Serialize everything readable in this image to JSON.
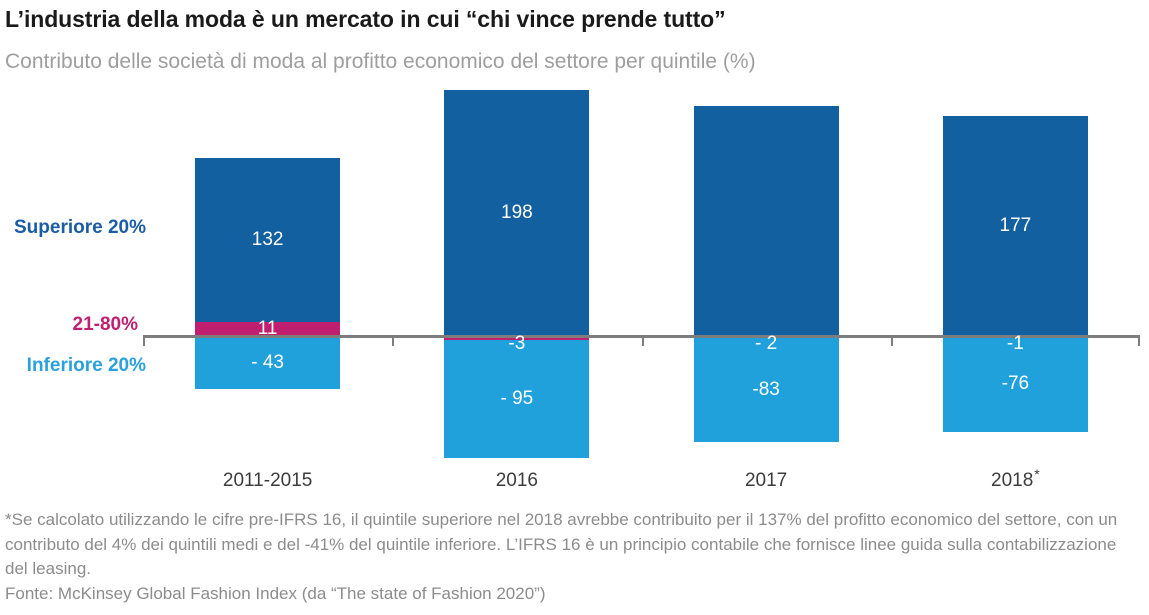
{
  "header": {
    "title": "L’industria della moda è un mercato in cui “chi vince prende tutto”",
    "subtitle": "Contributo delle società di moda al profitto economico del settore per quintile (%)"
  },
  "series_labels": {
    "top": "Superiore 20%",
    "mid": "21-80%",
    "bottom": "Inferiore 20%"
  },
  "colors": {
    "top_quintile": "#1360A1",
    "mid_quintile": "#C01E6E",
    "bottom_quintile": "#21A1DB",
    "axis_line": "#7D7D7D",
    "title_text": "#1A1A1A",
    "subtitle_text": "#9E9E9E",
    "category_text": "#3C3C3C",
    "footnote_text": "#8C8C8C",
    "bar_value_text": "#FFFFFF",
    "background": "#FFFFFF"
  },
  "chart_data": {
    "type": "bar",
    "stacked": true,
    "title": "Contributo delle società di moda al profitto economico del settore per quintile (%)",
    "xlabel": "",
    "ylabel": "",
    "ylim": [
      -120,
      210
    ],
    "grid": false,
    "legend_position": "left",
    "categories": [
      "2011-2015",
      "2016",
      "2017",
      "2018*"
    ],
    "series": [
      {
        "key": "top",
        "name": "Superiore 20%",
        "color": "#1360A1",
        "values": [
          132,
          198,
          185,
          177
        ],
        "labels": [
          "132",
          "198",
          "",
          "177"
        ]
      },
      {
        "key": "mid",
        "name": "21-80%",
        "color": "#C01E6E",
        "values": [
          11,
          -3,
          -2,
          -1
        ],
        "labels": [
          "11",
          "-3",
          "- 2",
          "-1"
        ]
      },
      {
        "key": "bottom",
        "name": "Inferiore 20%",
        "color": "#21A1DB",
        "values": [
          -43,
          -95,
          -83,
          -76
        ],
        "labels": [
          "- 43",
          "- 95",
          "-83",
          "-76"
        ]
      }
    ]
  },
  "footnote": {
    "note": "*Se calcolato utilizzando le cifre pre-IFRS 16, il quintile superiore nel 2018 avrebbe contribuito per il 137% del profitto economico del settore, con un contributo del 4% dei quintili medi e del -41% del quintile inferiore. L’IFRS 16 è un principio contabile che fornisce linee guida sulla contabilizzazione del leasing.",
    "source": "Fonte: McKinsey Global Fashion Index (da “The state of Fashion 2020”)"
  }
}
